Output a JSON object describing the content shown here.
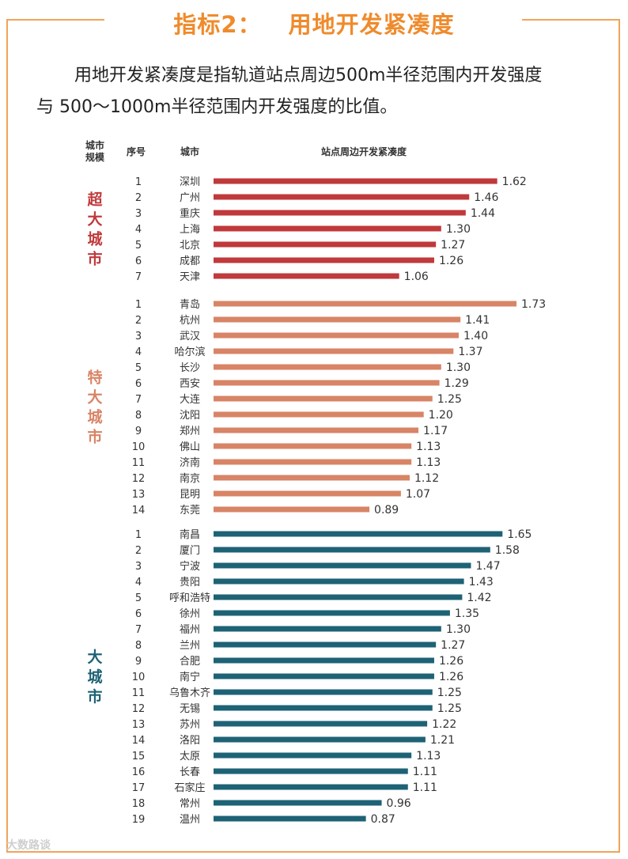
{
  "title": {
    "prefix": "指标2：",
    "main": "用地开发紧凑度"
  },
  "intro": {
    "line1": "用地开发紧凑度是指轨道站点周边500m半径范围内开发强度",
    "line2": "与 500～1000m半径范围内开发强度的比值。"
  },
  "columns": {
    "scale_line1": "城市",
    "scale_line2": "规模",
    "rank": "序号",
    "city": "城市",
    "metric": "站点周边开发紧凑度"
  },
  "watermark": "大数路谈",
  "colors": {
    "frame": "#f0a45a",
    "title": "#ef8b2c"
  },
  "chart_data": {
    "type": "bar",
    "orientation": "horizontal",
    "title": "站点周边开发紧凑度",
    "groups": [
      {
        "name": "超大城市",
        "color": "#c0393b",
        "categories": [
          "深圳",
          "广州",
          "重庆",
          "上海",
          "北京",
          "成都",
          "天津"
        ],
        "values": [
          1.62,
          1.46,
          1.44,
          1.3,
          1.27,
          1.26,
          1.06
        ]
      },
      {
        "name": "特大城市",
        "color": "#d88466",
        "categories": [
          "青岛",
          "杭州",
          "武汉",
          "哈尔滨",
          "长沙",
          "西安",
          "大连",
          "沈阳",
          "郑州",
          "佛山",
          "济南",
          "南京",
          "昆明",
          "东莞"
        ],
        "values": [
          1.73,
          1.41,
          1.4,
          1.37,
          1.3,
          1.29,
          1.25,
          1.2,
          1.17,
          1.13,
          1.13,
          1.12,
          1.07,
          0.89
        ]
      },
      {
        "name": "大城市",
        "color": "#1e6275",
        "categories": [
          "南昌",
          "厦门",
          "宁波",
          "贵阳",
          "呼和浩特",
          "徐州",
          "福州",
          "兰州",
          "合肥",
          "南宁",
          "乌鲁木齐",
          "无锡",
          "苏州",
          "洛阳",
          "太原",
          "长春",
          "石家庄",
          "常州",
          "温州"
        ],
        "values": [
          1.65,
          1.58,
          1.47,
          1.43,
          1.42,
          1.35,
          1.3,
          1.27,
          1.26,
          1.26,
          1.25,
          1.25,
          1.22,
          1.21,
          1.13,
          1.11,
          1.11,
          0.96,
          0.87
        ]
      }
    ]
  }
}
